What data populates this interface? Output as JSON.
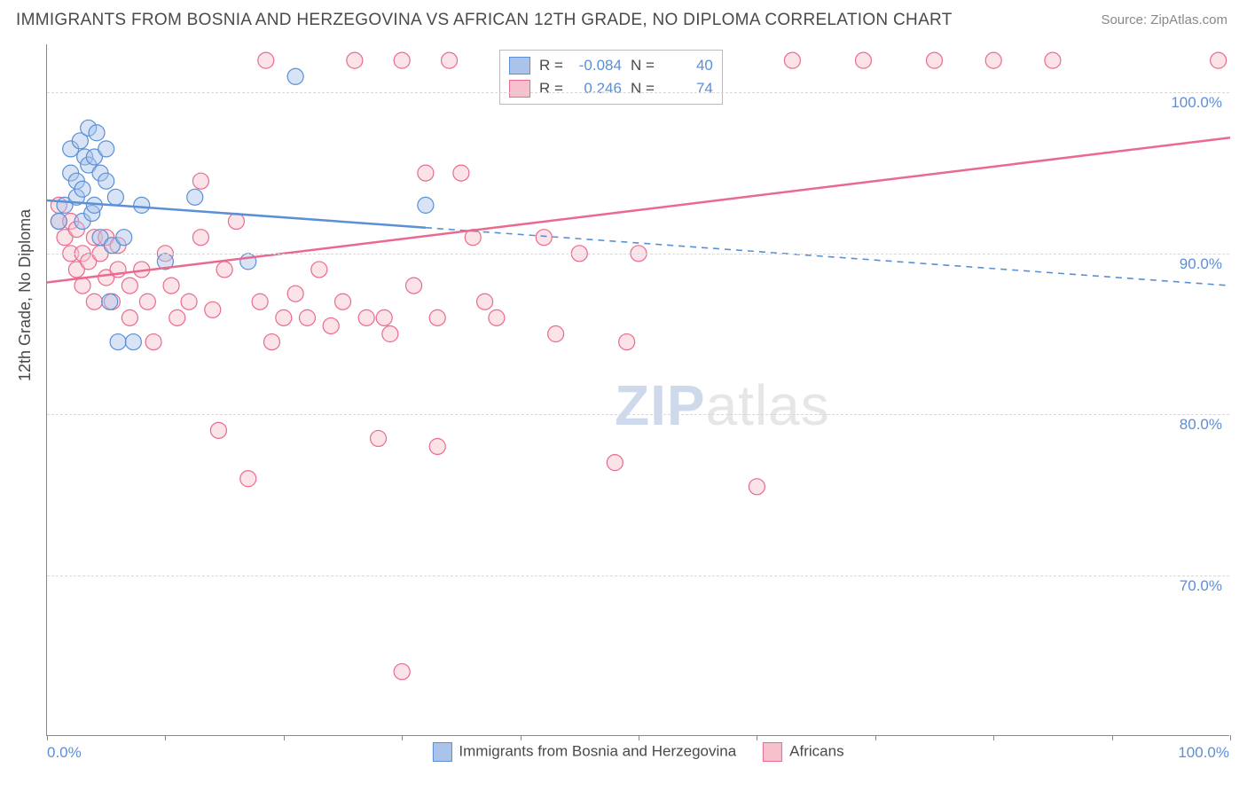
{
  "title": "IMMIGRANTS FROM BOSNIA AND HERZEGOVINA VS AFRICAN 12TH GRADE, NO DIPLOMA CORRELATION CHART",
  "source": "Source: ZipAtlas.com",
  "y_axis_label": "12th Grade, No Diploma",
  "watermark_zip": "ZIP",
  "watermark_atlas": "atlas",
  "chart": {
    "type": "scatter",
    "xlim": [
      0,
      100
    ],
    "ylim": [
      60,
      103
    ],
    "x_tick_positions": [
      0,
      10,
      20,
      30,
      40,
      50,
      60,
      70,
      80,
      90,
      100
    ],
    "x_label_min": "0.0%",
    "x_label_max": "100.0%",
    "y_ticks": [
      {
        "value": 70,
        "label": "70.0%"
      },
      {
        "value": 80,
        "label": "80.0%"
      },
      {
        "value": 90,
        "label": "90.0%"
      },
      {
        "value": 100,
        "label": "100.0%"
      }
    ],
    "grid_color": "#d8d8d8",
    "marker_radius": 9,
    "marker_opacity": 0.45,
    "line_width": 2.5,
    "series": [
      {
        "name": "Immigrants from Bosnia and Herzegovina",
        "color_fill": "#a9c3ea",
        "color_stroke": "#5b8fd6",
        "r": "-0.084",
        "n": "40",
        "regression": {
          "x1": 0,
          "y1": 93.3,
          "x2": 100,
          "y2": 88.0,
          "solid_until_x": 32
        },
        "points": [
          [
            1,
            92
          ],
          [
            1.5,
            93
          ],
          [
            2,
            95
          ],
          [
            2,
            96.5
          ],
          [
            2.5,
            93.5
          ],
          [
            2.5,
            94.5
          ],
          [
            2.8,
            97
          ],
          [
            3,
            92
          ],
          [
            3,
            94
          ],
          [
            3.2,
            96
          ],
          [
            3.5,
            95.5
          ],
          [
            3.5,
            97.8
          ],
          [
            3.8,
            92.5
          ],
          [
            4,
            93
          ],
          [
            4,
            96
          ],
          [
            4.2,
            97.5
          ],
          [
            4.5,
            91
          ],
          [
            4.5,
            95
          ],
          [
            5,
            94.5
          ],
          [
            5,
            96.5
          ],
          [
            5.3,
            87
          ],
          [
            5.5,
            90.5
          ],
          [
            5.8,
            93.5
          ],
          [
            6,
            84.5
          ],
          [
            6.5,
            91
          ],
          [
            7.3,
            84.5
          ],
          [
            8,
            93
          ],
          [
            10,
            89.5
          ],
          [
            12.5,
            93.5
          ],
          [
            17,
            89.5
          ],
          [
            21,
            101
          ],
          [
            32,
            93
          ]
        ]
      },
      {
        "name": "Africans",
        "color_fill": "#f6c0cd",
        "color_stroke": "#e96a8e",
        "r": "0.246",
        "n": "74",
        "regression": {
          "x1": 0,
          "y1": 88.2,
          "x2": 100,
          "y2": 97.2,
          "solid_until_x": 100
        },
        "points": [
          [
            1,
            92
          ],
          [
            1,
            93
          ],
          [
            1.5,
            91
          ],
          [
            2,
            90
          ],
          [
            2,
            92
          ],
          [
            2.5,
            89
          ],
          [
            2.5,
            91.5
          ],
          [
            3,
            88
          ],
          [
            3,
            90
          ],
          [
            3.5,
            89.5
          ],
          [
            4,
            87
          ],
          [
            4,
            91
          ],
          [
            4.5,
            90
          ],
          [
            5,
            88.5
          ],
          [
            5,
            91
          ],
          [
            5.5,
            87
          ],
          [
            6,
            89
          ],
          [
            6,
            90.5
          ],
          [
            7,
            86
          ],
          [
            7,
            88
          ],
          [
            8,
            89
          ],
          [
            8.5,
            87
          ],
          [
            9,
            84.5
          ],
          [
            10,
            90
          ],
          [
            10.5,
            88
          ],
          [
            11,
            86
          ],
          [
            12,
            87
          ],
          [
            13,
            91
          ],
          [
            13,
            94.5
          ],
          [
            14,
            86.5
          ],
          [
            14.5,
            79
          ],
          [
            15,
            89
          ],
          [
            16,
            92
          ],
          [
            17,
            76
          ],
          [
            18,
            87
          ],
          [
            18.5,
            102
          ],
          [
            19,
            84.5
          ],
          [
            20,
            86
          ],
          [
            21,
            87.5
          ],
          [
            22,
            86
          ],
          [
            23,
            89
          ],
          [
            24,
            85.5
          ],
          [
            25,
            87
          ],
          [
            26,
            102
          ],
          [
            27,
            86
          ],
          [
            28,
            78.5
          ],
          [
            28.5,
            86
          ],
          [
            29,
            85
          ],
          [
            30,
            102
          ],
          [
            30,
            64
          ],
          [
            31,
            88
          ],
          [
            32,
            95
          ],
          [
            33,
            86
          ],
          [
            33,
            78
          ],
          [
            34,
            102
          ],
          [
            35,
            95
          ],
          [
            36,
            91
          ],
          [
            37,
            87
          ],
          [
            38,
            86
          ],
          [
            42,
            91
          ],
          [
            43,
            85
          ],
          [
            44,
            102
          ],
          [
            45,
            90
          ],
          [
            48,
            77
          ],
          [
            49,
            84.5
          ],
          [
            50,
            90
          ],
          [
            60,
            75.5
          ],
          [
            63,
            102
          ],
          [
            69,
            102
          ],
          [
            75,
            102
          ],
          [
            80,
            102
          ],
          [
            85,
            102
          ],
          [
            99,
            102
          ]
        ]
      }
    ],
    "legend_bottom": [
      {
        "swatch_fill": "#a9c3ea",
        "swatch_stroke": "#5b8fd6",
        "label": "Immigrants from Bosnia and Herzegovina"
      },
      {
        "swatch_fill": "#f6c0cd",
        "swatch_stroke": "#e96a8e",
        "label": "Africans"
      }
    ]
  }
}
